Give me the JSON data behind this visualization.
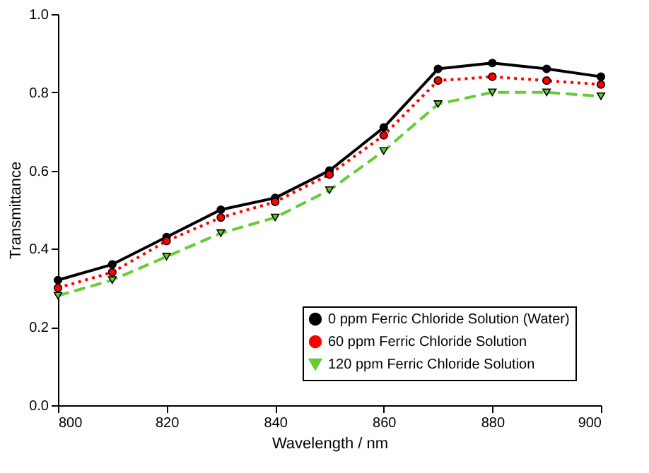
{
  "chart_data": {
    "type": "line",
    "xlabel": "Wavelength / nm",
    "ylabel": "Transmittance",
    "x": [
      800,
      810,
      820,
      830,
      840,
      850,
      860,
      870,
      880,
      890,
      900
    ],
    "xlim": [
      800,
      900
    ],
    "xticks": [
      800,
      820,
      840,
      860,
      880,
      900
    ],
    "ylim": [
      0,
      1.0
    ],
    "yticks": [
      {
        "value": 0,
        "label": "0.0"
      },
      0.2,
      0.4,
      0.6,
      0.8,
      {
        "value": 1.0,
        "label": "1.0"
      }
    ],
    "grid": false,
    "legend": "bottom right",
    "series": [
      {
        "name": "0 ppm Ferric Chloride Solution (Water)",
        "color": "#000000",
        "marker": "circle",
        "line_style": "solid",
        "values": [
          0.32,
          0.36,
          0.43,
          0.5,
          0.53,
          0.6,
          0.71,
          0.86,
          0.875,
          0.86,
          0.84
        ]
      },
      {
        "name": "60 ppm Ferric Chloride Solution",
        "color": "#ff0000",
        "marker": "circle",
        "line_style": "dotted",
        "values": [
          0.3,
          0.34,
          0.42,
          0.48,
          0.52,
          0.59,
          0.69,
          0.83,
          0.84,
          0.83,
          0.82
        ]
      },
      {
        "name": "120 ppm Ferric Chloride Solution",
        "color": "#66cc33",
        "marker": "triangle",
        "line_style": "dashed",
        "values": [
          0.28,
          0.32,
          0.38,
          0.44,
          0.48,
          0.55,
          0.65,
          0.77,
          0.8,
          0.8,
          0.79
        ]
      }
    ]
  }
}
